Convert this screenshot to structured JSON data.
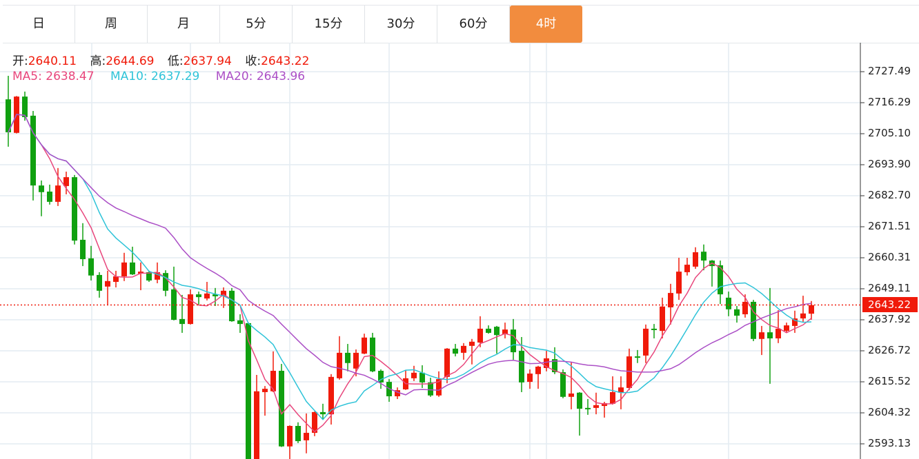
{
  "tabs": [
    {
      "label": "日",
      "active": false
    },
    {
      "label": "周",
      "active": false
    },
    {
      "label": "月",
      "active": false
    },
    {
      "label": "5分",
      "active": false
    },
    {
      "label": "15分",
      "active": false
    },
    {
      "label": "30分",
      "active": false
    },
    {
      "label": "60分",
      "active": false
    },
    {
      "label": "4时",
      "active": true
    }
  ],
  "ohlc_info": {
    "open_label": "开:",
    "open": "2640.11",
    "high_label": "高:",
    "high": "2644.69",
    "low_label": "低:",
    "low": "2637.94",
    "close_label": "收:",
    "close": "2643.22"
  },
  "ma_info": {
    "ma5_label": "MA5:",
    "ma5": "2638.47",
    "ma10_label": "MA10:",
    "ma10": "2637.29",
    "ma20_label": "MA20:",
    "ma20": "2643.96"
  },
  "current_price": "2643.22",
  "colors": {
    "up": "#f01a0a",
    "down": "#10a010",
    "ma5": "#e8467c",
    "ma10": "#2ec3d8",
    "ma20": "#ab4fc6",
    "active_tab": "#f28c3e"
  },
  "chart_data": {
    "type": "candlestick",
    "y_ticks": [
      "2727.49",
      "2716.29",
      "2705.10",
      "2693.90",
      "2682.70",
      "2671.51",
      "2660.31",
      "2649.11",
      "2637.92",
      "2626.72",
      "2615.52",
      "2604.32",
      "2593.13"
    ],
    "ylim": [
      2581,
      2741
    ],
    "grid": true,
    "moving_averages": [
      5,
      10,
      20
    ],
    "candles_ochl_fields": [
      "open",
      "close",
      "high",
      "low"
    ],
    "candles": [
      [
        2717.5,
        2705.6,
        2726.0,
        2700.4
      ],
      [
        2705.4,
        2718.5,
        2718.7,
        2705.2
      ],
      [
        2718.5,
        2711.1,
        2720.3,
        2709.8
      ],
      [
        2711.6,
        2686.4,
        2713.3,
        2681.0
      ],
      [
        2686.4,
        2684.0,
        2688.2,
        2675.3
      ],
      [
        2684.2,
        2680.5,
        2686.7,
        2679.5
      ],
      [
        2680.5,
        2686.4,
        2692.7,
        2679.0
      ],
      [
        2686.2,
        2689.4,
        2691.4,
        2683.2
      ],
      [
        2689.4,
        2666.5,
        2690.2,
        2665.1
      ],
      [
        2666.8,
        2659.8,
        2672.8,
        2657.3
      ],
      [
        2660.1,
        2653.9,
        2664.6,
        2652.1
      ],
      [
        2654.1,
        2648.4,
        2655.1,
        2645.9
      ],
      [
        2649.9,
        2651.9,
        2655.6,
        2643.4
      ],
      [
        2651.6,
        2653.6,
        2655.6,
        2649.6
      ],
      [
        2653.6,
        2658.6,
        2662.1,
        2651.9
      ],
      [
        2658.6,
        2654.3,
        2664.3,
        2654.1
      ],
      [
        2654.6,
        2655.3,
        2658.6,
        2648.6
      ],
      [
        2655.1,
        2652.1,
        2655.6,
        2651.6
      ],
      [
        2652.4,
        2655.1,
        2658.6,
        2651.1
      ],
      [
        2654.8,
        2648.4,
        2655.8,
        2646.4
      ],
      [
        2648.9,
        2637.9,
        2657.1,
        2637.7
      ],
      [
        2638.2,
        2636.4,
        2646.9,
        2633.2
      ],
      [
        2636.4,
        2647.1,
        2648.9,
        2636.2
      ],
      [
        2647.1,
        2646.1,
        2648.1,
        2643.4
      ],
      [
        2645.6,
        2647.4,
        2651.6,
        2644.9
      ],
      [
        2647.1,
        2646.4,
        2649.4,
        2642.9
      ],
      [
        2646.4,
        2648.4,
        2649.6,
        2642.2
      ],
      [
        2648.4,
        2637.4,
        2649.4,
        2637.2
      ],
      [
        2637.7,
        2636.4,
        2639.9,
        2633.2
      ],
      [
        2636.7,
        2583.0,
        2636.9,
        2582.0
      ],
      [
        2583.0,
        2612.1,
        2618.0,
        2581.5
      ],
      [
        2611.8,
        2613.0,
        2614.0,
        2603.3
      ],
      [
        2612.1,
        2619.5,
        2626.5,
        2611.8
      ],
      [
        2619.5,
        2592.2,
        2622.0,
        2592.0
      ],
      [
        2592.2,
        2599.6,
        2599.8,
        2587.0
      ],
      [
        2599.6,
        2594.1,
        2600.9,
        2593.4
      ],
      [
        2594.4,
        2597.1,
        2604.1,
        2589.7
      ],
      [
        2597.1,
        2604.6,
        2604.8,
        2595.9
      ],
      [
        2604.6,
        2603.8,
        2607.6,
        2602.1
      ],
      [
        2603.8,
        2617.3,
        2618.3,
        2600.1
      ],
      [
        2616.8,
        2626.0,
        2632.0,
        2616.3
      ],
      [
        2626.0,
        2622.3,
        2629.2,
        2619.3
      ],
      [
        2620.3,
        2626.0,
        2627.2,
        2617.5
      ],
      [
        2625.7,
        2631.5,
        2632.9,
        2625.5
      ],
      [
        2631.5,
        2619.3,
        2633.2,
        2619.0
      ],
      [
        2619.5,
        2615.3,
        2620.0,
        2613.0
      ],
      [
        2615.5,
        2610.3,
        2616.5,
        2608.3
      ],
      [
        2610.3,
        2612.5,
        2613.5,
        2609.3
      ],
      [
        2612.8,
        2616.8,
        2619.8,
        2612.6
      ],
      [
        2616.8,
        2618.8,
        2621.3,
        2615.8
      ],
      [
        2618.8,
        2615.3,
        2621.5,
        2613.3
      ],
      [
        2615.3,
        2610.6,
        2617.0,
        2610.1
      ],
      [
        2610.6,
        2616.5,
        2619.3,
        2610.1
      ],
      [
        2617.3,
        2627.5,
        2627.7,
        2615.0
      ],
      [
        2627.5,
        2625.7,
        2629.2,
        2624.7
      ],
      [
        2626.0,
        2628.5,
        2629.5,
        2623.5
      ],
      [
        2628.5,
        2630.0,
        2631.0,
        2621.8
      ],
      [
        2629.7,
        2634.7,
        2639.2,
        2628.0
      ],
      [
        2634.7,
        2633.2,
        2635.9,
        2632.9
      ],
      [
        2635.4,
        2632.4,
        2635.7,
        2625.7
      ],
      [
        2632.7,
        2634.4,
        2636.9,
        2631.2
      ],
      [
        2634.4,
        2626.2,
        2638.2,
        2623.5
      ],
      [
        2626.7,
        2615.3,
        2631.7,
        2611.8
      ],
      [
        2615.5,
        2618.5,
        2620.0,
        2613.0
      ],
      [
        2618.3,
        2621.0,
        2621.3,
        2613.0
      ],
      [
        2620.5,
        2624.0,
        2626.7,
        2619.3
      ],
      [
        2623.7,
        2619.0,
        2628.0,
        2618.3
      ],
      [
        2619.0,
        2610.1,
        2620.0,
        2609.6
      ],
      [
        2610.1,
        2611.3,
        2622.5,
        2605.6
      ],
      [
        2611.6,
        2605.8,
        2611.8,
        2596.1
      ],
      [
        2606.1,
        2605.6,
        2609.3,
        2603.6
      ],
      [
        2606.1,
        2607.1,
        2611.6,
        2603.8
      ],
      [
        2606.8,
        2607.8,
        2608.3,
        2602.6
      ],
      [
        2607.6,
        2611.8,
        2617.5,
        2607.3
      ],
      [
        2611.6,
        2613.5,
        2617.5,
        2605.6
      ],
      [
        2613.3,
        2624.7,
        2627.5,
        2612.5
      ],
      [
        2624.7,
        2624.2,
        2627.0,
        2622.3
      ],
      [
        2625.0,
        2634.7,
        2636.2,
        2622.3
      ],
      [
        2634.7,
        2634.2,
        2636.4,
        2631.2
      ],
      [
        2633.9,
        2642.7,
        2645.9,
        2631.2
      ],
      [
        2642.4,
        2647.6,
        2650.9,
        2636.2
      ],
      [
        2647.4,
        2655.3,
        2660.3,
        2645.1
      ],
      [
        2655.1,
        2657.8,
        2660.3,
        2653.9
      ],
      [
        2657.1,
        2662.3,
        2664.1,
        2656.3
      ],
      [
        2662.5,
        2659.3,
        2665.1,
        2655.8
      ],
      [
        2659.3,
        2657.3,
        2659.5,
        2649.9
      ],
      [
        2657.6,
        2647.1,
        2659.3,
        2643.6
      ],
      [
        2645.9,
        2641.7,
        2648.1,
        2639.2
      ],
      [
        2641.7,
        2639.4,
        2642.9,
        2636.9
      ],
      [
        2639.9,
        2644.4,
        2647.1,
        2638.7
      ],
      [
        2644.4,
        2631.0,
        2645.1,
        2630.2
      ],
      [
        2631.0,
        2633.4,
        2635.7,
        2625.2
      ],
      [
        2633.4,
        2631.2,
        2649.4,
        2614.8
      ],
      [
        2631.2,
        2634.7,
        2641.4,
        2629.5
      ],
      [
        2633.9,
        2635.9,
        2636.9,
        2633.2
      ],
      [
        2635.7,
        2638.4,
        2641.2,
        2633.2
      ],
      [
        2638.4,
        2640.2,
        2646.6,
        2637.2
      ],
      [
        2640.11,
        2643.22,
        2644.69,
        2637.94
      ]
    ]
  }
}
